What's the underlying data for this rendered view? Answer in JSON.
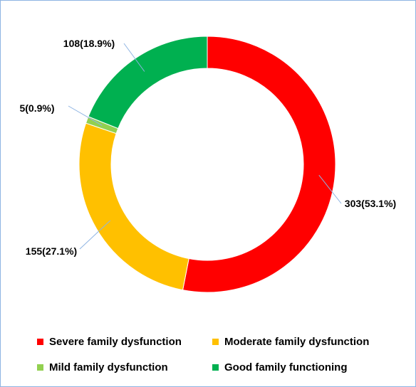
{
  "chart_data": {
    "type": "pie",
    "donut": true,
    "title": "",
    "slices": [
      {
        "label": "Severe family dysfunction",
        "value": 303,
        "data_label": "303(53.1%)",
        "color": "#ff0000"
      },
      {
        "label": "Moderate family dysfunction",
        "value": 155,
        "data_label": "155(27.1%)",
        "color": "#ffc000"
      },
      {
        "label": "Mild family dysfunction",
        "value": 5,
        "data_label": "5(0.9%)",
        "color": "#92d050"
      },
      {
        "label": "Good family functioning",
        "value": 108,
        "data_label": "108(18.9%)",
        "color": "#00b050"
      }
    ],
    "legend_position": "bottom"
  }
}
